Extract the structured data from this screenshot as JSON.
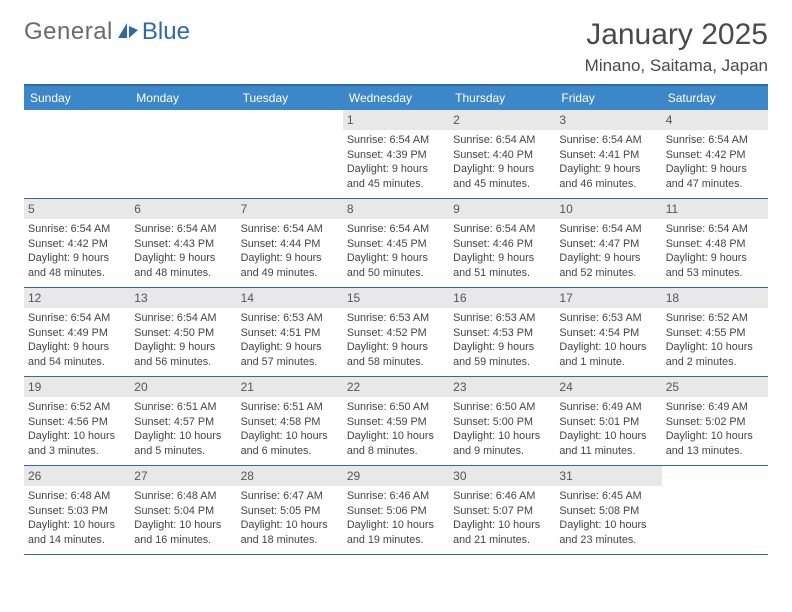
{
  "logo": {
    "part1": "General",
    "part2": "Blue"
  },
  "header": {
    "month_title": "January 2025",
    "location": "Minano, Saitama, Japan"
  },
  "calendar": {
    "type": "table",
    "header_bg": "#3c87c7",
    "header_text_color": "#ffffff",
    "border_color": "#2f6aa8",
    "daynum_bg": "#e8e8e8",
    "background_color": "#ffffff",
    "text_color": "#444444",
    "font_size_body": 10.8,
    "font_size_header": 12,
    "columns": [
      "Sunday",
      "Monday",
      "Tuesday",
      "Wednesday",
      "Thursday",
      "Friday",
      "Saturday"
    ],
    "weeks": [
      [
        null,
        null,
        null,
        {
          "day": "1",
          "sunrise": "6:54 AM",
          "sunset": "4:39 PM",
          "daylight1": "Daylight: 9 hours",
          "daylight2": "and 45 minutes."
        },
        {
          "day": "2",
          "sunrise": "6:54 AM",
          "sunset": "4:40 PM",
          "daylight1": "Daylight: 9 hours",
          "daylight2": "and 45 minutes."
        },
        {
          "day": "3",
          "sunrise": "6:54 AM",
          "sunset": "4:41 PM",
          "daylight1": "Daylight: 9 hours",
          "daylight2": "and 46 minutes."
        },
        {
          "day": "4",
          "sunrise": "6:54 AM",
          "sunset": "4:42 PM",
          "daylight1": "Daylight: 9 hours",
          "daylight2": "and 47 minutes."
        }
      ],
      [
        {
          "day": "5",
          "sunrise": "6:54 AM",
          "sunset": "4:42 PM",
          "daylight1": "Daylight: 9 hours",
          "daylight2": "and 48 minutes."
        },
        {
          "day": "6",
          "sunrise": "6:54 AM",
          "sunset": "4:43 PM",
          "daylight1": "Daylight: 9 hours",
          "daylight2": "and 48 minutes."
        },
        {
          "day": "7",
          "sunrise": "6:54 AM",
          "sunset": "4:44 PM",
          "daylight1": "Daylight: 9 hours",
          "daylight2": "and 49 minutes."
        },
        {
          "day": "8",
          "sunrise": "6:54 AM",
          "sunset": "4:45 PM",
          "daylight1": "Daylight: 9 hours",
          "daylight2": "and 50 minutes."
        },
        {
          "day": "9",
          "sunrise": "6:54 AM",
          "sunset": "4:46 PM",
          "daylight1": "Daylight: 9 hours",
          "daylight2": "and 51 minutes."
        },
        {
          "day": "10",
          "sunrise": "6:54 AM",
          "sunset": "4:47 PM",
          "daylight1": "Daylight: 9 hours",
          "daylight2": "and 52 minutes."
        },
        {
          "day": "11",
          "sunrise": "6:54 AM",
          "sunset": "4:48 PM",
          "daylight1": "Daylight: 9 hours",
          "daylight2": "and 53 minutes."
        }
      ],
      [
        {
          "day": "12",
          "sunrise": "6:54 AM",
          "sunset": "4:49 PM",
          "daylight1": "Daylight: 9 hours",
          "daylight2": "and 54 minutes."
        },
        {
          "day": "13",
          "sunrise": "6:54 AM",
          "sunset": "4:50 PM",
          "daylight1": "Daylight: 9 hours",
          "daylight2": "and 56 minutes."
        },
        {
          "day": "14",
          "sunrise": "6:53 AM",
          "sunset": "4:51 PM",
          "daylight1": "Daylight: 9 hours",
          "daylight2": "and 57 minutes."
        },
        {
          "day": "15",
          "sunrise": "6:53 AM",
          "sunset": "4:52 PM",
          "daylight1": "Daylight: 9 hours",
          "daylight2": "and 58 minutes."
        },
        {
          "day": "16",
          "sunrise": "6:53 AM",
          "sunset": "4:53 PM",
          "daylight1": "Daylight: 9 hours",
          "daylight2": "and 59 minutes."
        },
        {
          "day": "17",
          "sunrise": "6:53 AM",
          "sunset": "4:54 PM",
          "daylight1": "Daylight: 10 hours",
          "daylight2": "and 1 minute."
        },
        {
          "day": "18",
          "sunrise": "6:52 AM",
          "sunset": "4:55 PM",
          "daylight1": "Daylight: 10 hours",
          "daylight2": "and 2 minutes."
        }
      ],
      [
        {
          "day": "19",
          "sunrise": "6:52 AM",
          "sunset": "4:56 PM",
          "daylight1": "Daylight: 10 hours",
          "daylight2": "and 3 minutes."
        },
        {
          "day": "20",
          "sunrise": "6:51 AM",
          "sunset": "4:57 PM",
          "daylight1": "Daylight: 10 hours",
          "daylight2": "and 5 minutes."
        },
        {
          "day": "21",
          "sunrise": "6:51 AM",
          "sunset": "4:58 PM",
          "daylight1": "Daylight: 10 hours",
          "daylight2": "and 6 minutes."
        },
        {
          "day": "22",
          "sunrise": "6:50 AM",
          "sunset": "4:59 PM",
          "daylight1": "Daylight: 10 hours",
          "daylight2": "and 8 minutes."
        },
        {
          "day": "23",
          "sunrise": "6:50 AM",
          "sunset": "5:00 PM",
          "daylight1": "Daylight: 10 hours",
          "daylight2": "and 9 minutes."
        },
        {
          "day": "24",
          "sunrise": "6:49 AM",
          "sunset": "5:01 PM",
          "daylight1": "Daylight: 10 hours",
          "daylight2": "and 11 minutes."
        },
        {
          "day": "25",
          "sunrise": "6:49 AM",
          "sunset": "5:02 PM",
          "daylight1": "Daylight: 10 hours",
          "daylight2": "and 13 minutes."
        }
      ],
      [
        {
          "day": "26",
          "sunrise": "6:48 AM",
          "sunset": "5:03 PM",
          "daylight1": "Daylight: 10 hours",
          "daylight2": "and 14 minutes."
        },
        {
          "day": "27",
          "sunrise": "6:48 AM",
          "sunset": "5:04 PM",
          "daylight1": "Daylight: 10 hours",
          "daylight2": "and 16 minutes."
        },
        {
          "day": "28",
          "sunrise": "6:47 AM",
          "sunset": "5:05 PM",
          "daylight1": "Daylight: 10 hours",
          "daylight2": "and 18 minutes."
        },
        {
          "day": "29",
          "sunrise": "6:46 AM",
          "sunset": "5:06 PM",
          "daylight1": "Daylight: 10 hours",
          "daylight2": "and 19 minutes."
        },
        {
          "day": "30",
          "sunrise": "6:46 AM",
          "sunset": "5:07 PM",
          "daylight1": "Daylight: 10 hours",
          "daylight2": "and 21 minutes."
        },
        {
          "day": "31",
          "sunrise": "6:45 AM",
          "sunset": "5:08 PM",
          "daylight1": "Daylight: 10 hours",
          "daylight2": "and 23 minutes."
        },
        null
      ]
    ]
  }
}
